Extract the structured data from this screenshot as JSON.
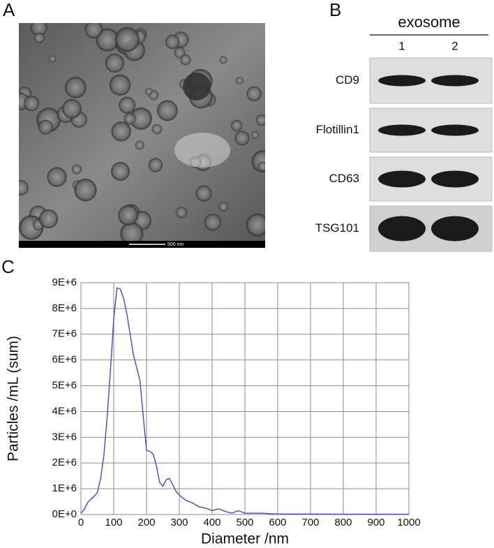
{
  "panel_labels": [
    "A",
    "B",
    "C"
  ],
  "tem": {
    "scale_bar": "500 nm"
  },
  "western_blot": {
    "group": "exosome",
    "lanes": [
      "1",
      "2"
    ],
    "proteins": [
      "CD9",
      "Flotillin1",
      "CD63",
      "TSG101"
    ]
  },
  "chart_data": {
    "type": "line",
    "xlabel": "Diameter /nm",
    "ylabel": "Particles /mL (sum)",
    "color": "#4b44c8",
    "grid": true,
    "xlim": [
      0,
      1000
    ],
    "xticks": [
      0,
      100,
      200,
      300,
      400,
      500,
      600,
      700,
      800,
      900,
      1000
    ],
    "ylim": [
      0,
      9000000
    ],
    "yticks": [
      {
        "value": 0,
        "label": "0E+0"
      },
      {
        "value": 1000000,
        "label": "1E+6"
      },
      {
        "value": 2000000,
        "label": "2E+6"
      },
      {
        "value": 3000000,
        "label": "3E+6"
      },
      {
        "value": 4000000,
        "label": "4E+6"
      },
      {
        "value": 5000000,
        "label": "5E+6"
      },
      {
        "value": 6000000,
        "label": "6E+6"
      },
      {
        "value": 7000000,
        "label": "7E+6"
      },
      {
        "value": 8000000,
        "label": "8E+6"
      },
      {
        "value": 9000000,
        "label": "9E+6"
      }
    ],
    "x": [
      0,
      10,
      20,
      30,
      40,
      50,
      60,
      70,
      80,
      90,
      100,
      110,
      120,
      130,
      140,
      150,
      160,
      170,
      180,
      190,
      200,
      210,
      220,
      230,
      240,
      250,
      260,
      270,
      280,
      290,
      300,
      320,
      340,
      360,
      380,
      400,
      420,
      440,
      460,
      480,
      500,
      520,
      550,
      600,
      700,
      800,
      900,
      1000
    ],
    "values": [
      50000,
      200000,
      450000,
      600000,
      700000,
      850000,
      1400000,
      2300000,
      3800000,
      5600000,
      7600000,
      8800000,
      8750000,
      8400000,
      7800000,
      7000000,
      6200000,
      5700000,
      5200000,
      3800000,
      2500000,
      2450000,
      2350000,
      1900000,
      1250000,
      1100000,
      1350000,
      1400000,
      1150000,
      900000,
      750000,
      550000,
      450000,
      300000,
      250000,
      150000,
      220000,
      120000,
      50000,
      150000,
      50000,
      50000,
      50000,
      20000,
      20000,
      10000,
      10000,
      10000
    ]
  }
}
